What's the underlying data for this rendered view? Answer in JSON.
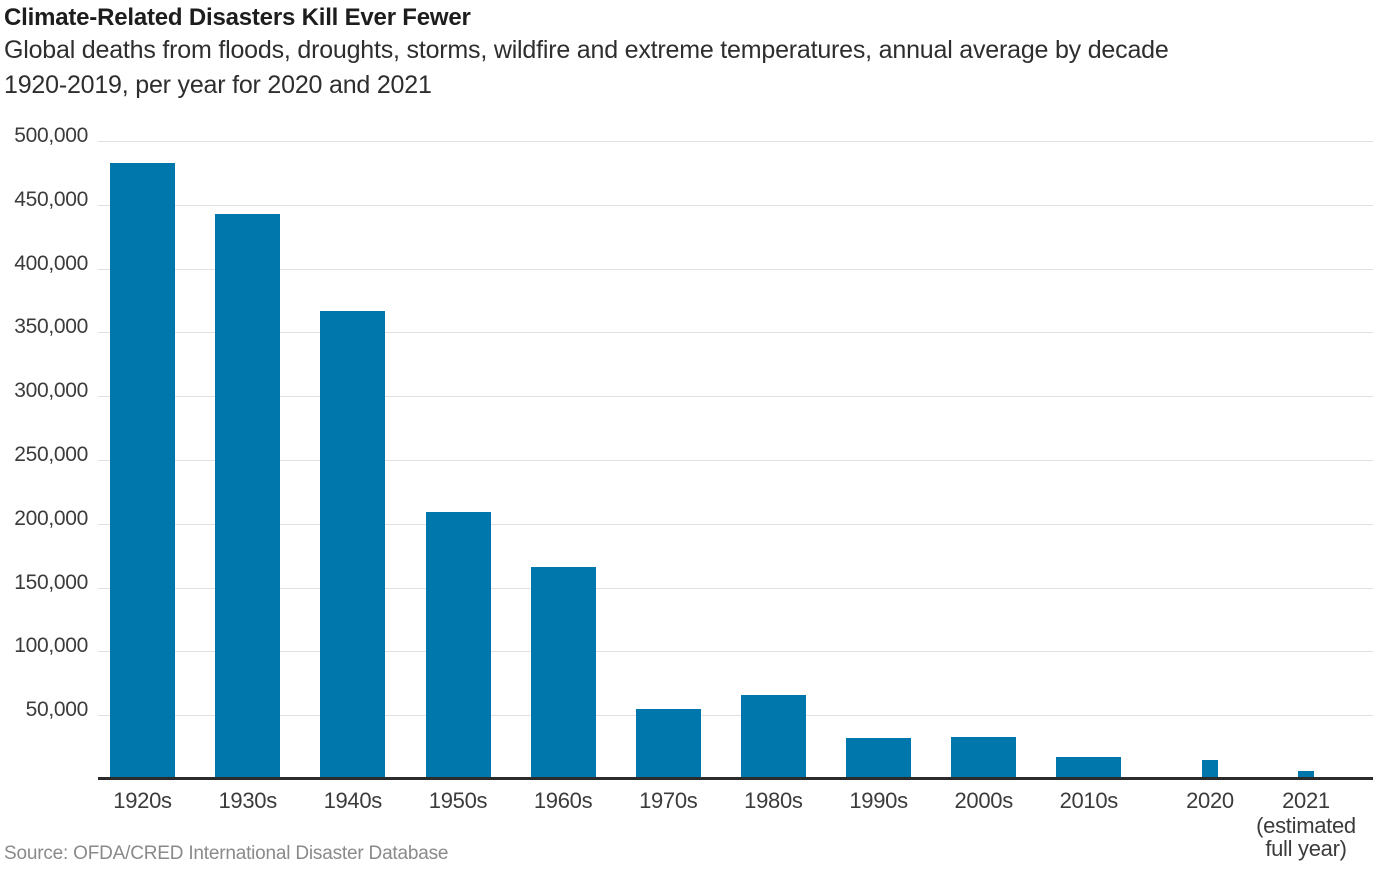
{
  "header": {
    "title": "Climate-Related Disasters Kill Ever Fewer",
    "subtitle_line1": "Global deaths from floods, droughts, storms, wildfire and extreme temperatures, annual average by decade",
    "subtitle_line2": "1920-2019, per year for 2020 and 2021"
  },
  "footer": {
    "source": "Source: OFDA/CRED International Disaster Database"
  },
  "colors": {
    "bar_blue": "#0077AC",
    "gridline": "#e0e0e0",
    "axis": "#2b2b2b",
    "text_dark": "#2e2e2e",
    "text_muted": "#8a8a8a"
  },
  "chart_data": {
    "type": "bar",
    "title": "Climate-Related Disasters Kill Ever Fewer",
    "subtitle": "Global deaths from floods, droughts, storms, wildfire and extreme temperatures, annual average by decade 1920-2019, per year for 2020 and 2021",
    "xlabel": "",
    "ylabel": "",
    "ylim": [
      0,
      500000
    ],
    "ytick_step": 50000,
    "ytick_labels": [
      "50,000",
      "100,000",
      "150,000",
      "200,000",
      "250,000",
      "300,000",
      "350,000",
      "400,000",
      "450,000",
      "500,000"
    ],
    "grid": "horizontal",
    "legend": null,
    "bar_color": "#0077AC",
    "categories": [
      "1920s",
      "1930s",
      "1940s",
      "1950s",
      "1960s",
      "1970s",
      "1980s",
      "1990s",
      "2000s",
      "2010s",
      "2020",
      "2021"
    ],
    "values": [
      483000,
      443000,
      367000,
      209000,
      166000,
      55000,
      66000,
      32000,
      33000,
      17000,
      15000,
      6000
    ],
    "single_year_bars": [
      "2020",
      "2021"
    ],
    "x_sublabel": {
      "category": "2021",
      "lines": [
        "(estimated",
        "full year)"
      ]
    }
  }
}
